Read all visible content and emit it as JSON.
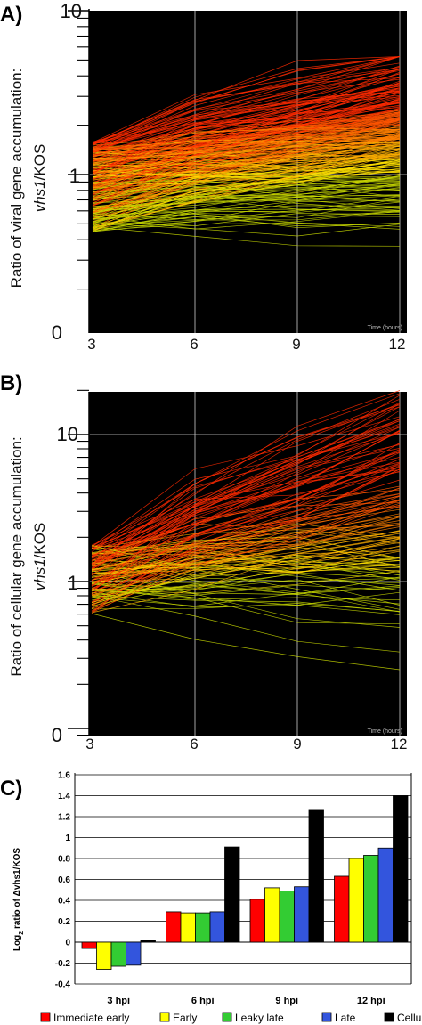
{
  "chart_data": [
    {
      "panel": "A)",
      "type": "line",
      "ylabel_line1": "Ratio of viral gene accumulation:",
      "ylabel_line2_italic": "vhs1",
      "ylabel_line2_rest": "/KOS",
      "x": [
        3,
        6,
        9,
        12
      ],
      "x_tick_labels": [
        "3",
        "6",
        "9",
        "12"
      ],
      "y_tick_labels": [
        "10",
        "1",
        "0"
      ],
      "y_scale": "log",
      "time_caption": "Time (hours)",
      "series_summary": "many viral genes, ratio ~0.4-1.7 at 3 h rising to ~0.7-5 at 12 h",
      "colors": [
        "#ff2a00",
        "#ff5500",
        "#ff8000",
        "#ffb000",
        "#ffe000",
        "#c8d800"
      ]
    },
    {
      "panel": "B)",
      "type": "line",
      "ylabel_line1": "Ratio of cellular gene accumulation:",
      "ylabel_line2_italic": "vhs1",
      "ylabel_line2_rest": "/KOS",
      "x": [
        3,
        6,
        9,
        12
      ],
      "x_tick_labels": [
        "3",
        "6",
        "9",
        "12"
      ],
      "y_tick_labels": [
        "10",
        "1",
        "0"
      ],
      "y_scale": "log",
      "time_caption": "Time (hours)",
      "series_summary": "cellular genes, ratio ~0.6-1.8 at 3 h spreading to ~0.3-20 at 12 h",
      "colors": [
        "#ff2a00",
        "#ff5500",
        "#ff8000",
        "#ffb000",
        "#ffe000",
        "#c8d800"
      ]
    },
    {
      "panel": "C)",
      "type": "bar",
      "ylabel_prefix": "Log",
      "ylabel_sub": "2",
      "ylabel_suffix": " ratio of Δvhs1/KOS",
      "categories": [
        "3 hpi",
        "6 hpi",
        "9 hpi",
        "12 hpi"
      ],
      "ylim": [
        -0.4,
        1.6
      ],
      "y_ticks": [
        "-0.4",
        "-0.2",
        "0",
        "0.2",
        "0.4",
        "0.6",
        "0.8",
        "1",
        "1.2",
        "1.4",
        "1.6"
      ],
      "legend_position": "bottom",
      "series": [
        {
          "name": "Immediate early",
          "color": "#ff0000",
          "values": [
            -0.06,
            0.29,
            0.41,
            0.63
          ]
        },
        {
          "name": "Early",
          "color": "#ffff00",
          "values": [
            -0.26,
            0.28,
            0.52,
            0.8
          ]
        },
        {
          "name": "Leaky late",
          "color": "#33cc33",
          "values": [
            -0.23,
            0.28,
            0.49,
            0.83
          ]
        },
        {
          "name": "Late",
          "color": "#3355dd",
          "values": [
            -0.22,
            0.29,
            0.53,
            0.9
          ]
        },
        {
          "name": "Cellular",
          "color": "#000000",
          "values": [
            0.02,
            0.91,
            1.26,
            1.4
          ]
        }
      ]
    }
  ]
}
